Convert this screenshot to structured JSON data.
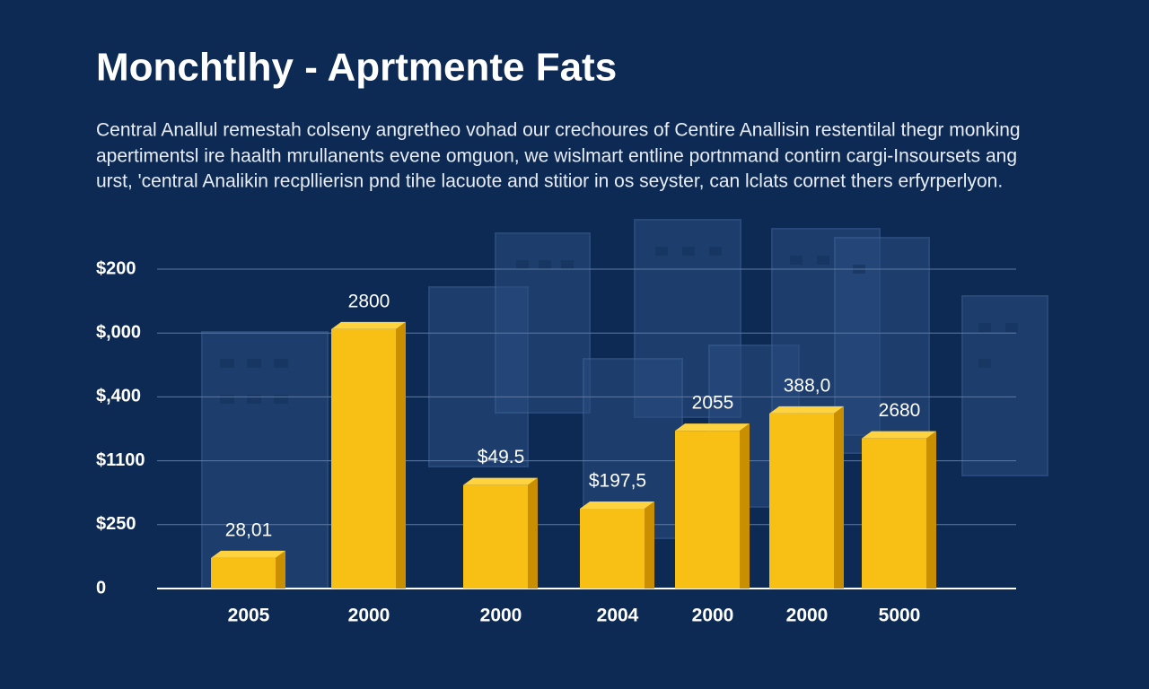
{
  "chart_data": {
    "type": "bar",
    "title": "Monchtlhy - Aprtmente Fats",
    "subtitle": [
      "Central Anallul remestah colseny angretheo vohad our crechoures of Centire Anallisin restentilal thegr monking",
      "apertimentsl ire haalth mrullanents evene omguon, we wislmart entline portnmand contirn cargi-Insoursets ang",
      "urst, 'central Analikin recpllierisn pnd tihe lacuote and stitior  in os seyster, can lclats cornet thers erfyrperlyon."
    ],
    "categories": [
      "2005",
      "2000",
      "2000",
      "2004",
      "2000",
      "2000",
      "5000"
    ],
    "values": [
      0.48,
      4.06,
      1.62,
      1.25,
      2.47,
      2.74,
      2.35
    ],
    "annotations": [
      "28,01",
      "2800",
      "$49.5",
      "$197,5",
      "2055",
      "388,0",
      "2680"
    ],
    "color": "#f8bf14",
    "ylim": [
      0,
      5
    ],
    "yticks": [
      {
        "value": 0,
        "label": "0"
      },
      {
        "value": 1,
        "label": "$250"
      },
      {
        "value": 2,
        "label": "$1100"
      },
      {
        "value": 3,
        "label": "$,400"
      },
      {
        "value": 4,
        "label": "$,000"
      },
      {
        "value": 5,
        "label": "$200"
      }
    ],
    "grid": true
  }
}
